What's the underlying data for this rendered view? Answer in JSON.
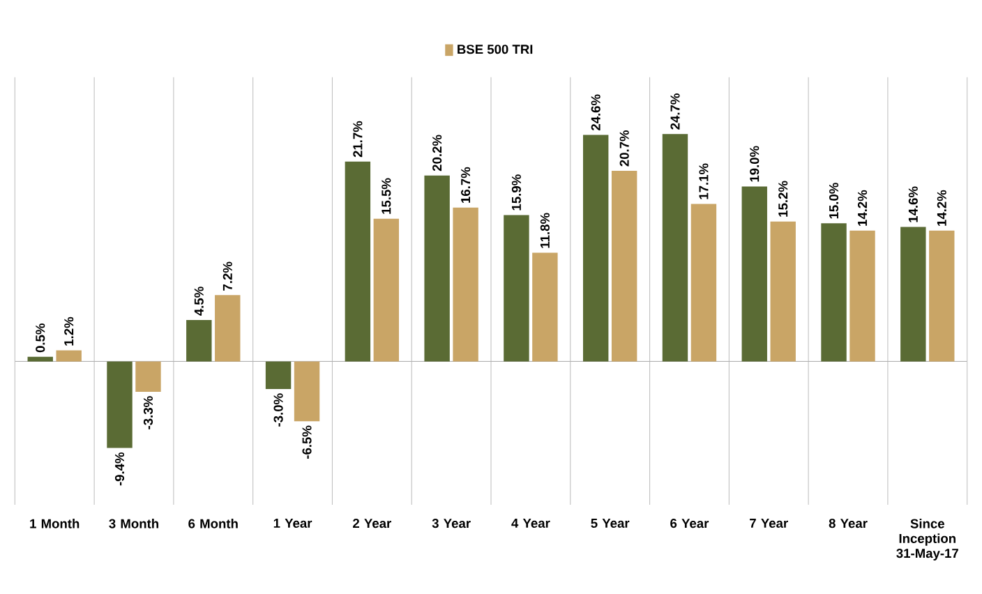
{
  "chart_data": {
    "type": "bar",
    "categories": [
      "1 Month",
      "3 Month",
      "6 Month",
      "1 Year",
      "2 Year",
      "3 Year",
      "4 Year",
      "5 Year",
      "6 Year",
      "7 Year",
      "8 Year",
      "Since Inception 31-May-17"
    ],
    "series": [
      {
        "color": "#5a6b34",
        "values": [
          0.5,
          -9.4,
          4.5,
          -3.0,
          21.7,
          20.2,
          15.9,
          24.6,
          24.7,
          19.0,
          15.0,
          14.6
        ],
        "value_labels": [
          "0.5%",
          "-9.4%",
          "4.5%",
          "-3.0%",
          "21.7%",
          "20.2%",
          "15.9%",
          "24.6%",
          "24.7%",
          "19.0%",
          "15.0%",
          "14.6%"
        ]
      },
      {
        "name": "BSE 500 TRI",
        "color": "#c9a566",
        "values": [
          1.2,
          -3.3,
          7.2,
          -6.5,
          15.5,
          16.7,
          11.8,
          20.7,
          17.1,
          15.2,
          14.2,
          14.2
        ],
        "value_labels": [
          "1.2%",
          "-3.3%",
          "7.2%",
          "-6.5%",
          "15.5%",
          "16.7%",
          "11.8%",
          "20.7%",
          "17.1%",
          "15.2%",
          "14.2%",
          "14.2%"
        ]
      }
    ],
    "grid": "x",
    "legend": "top",
    "tick_labels": "x"
  }
}
